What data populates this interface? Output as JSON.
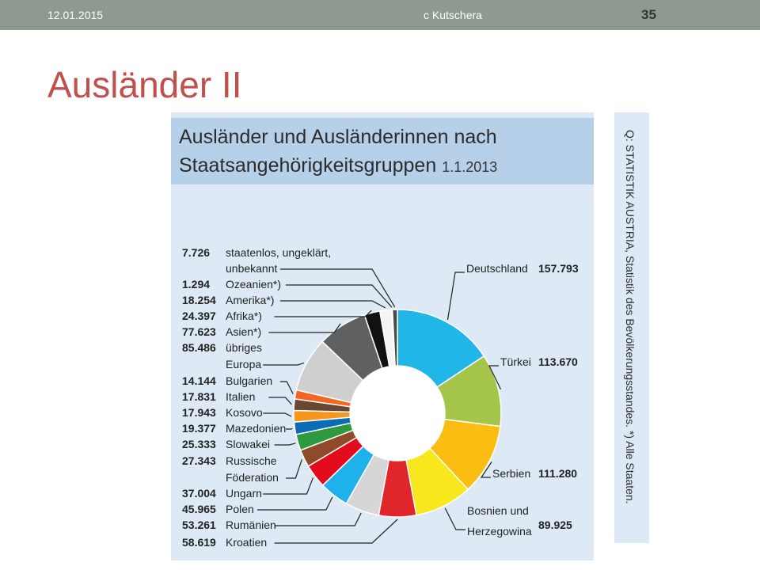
{
  "slide": {
    "date": "12.01.2015",
    "author": "c Kutschera",
    "page": "35",
    "title": "Ausländer II"
  },
  "figure": {
    "title_line1": "Ausländer und Ausländerinnen nach",
    "title_line2": "Staatsangehörigkeitsgruppen",
    "date": "1.1.2013",
    "source": "Q: STATISTIK AUSTRIA, Statistik des Bevölkerungsstandes. *) Alle Staaten."
  },
  "chart_data": {
    "type": "pie",
    "title": "Ausländer und Ausländerinnen nach Staatsangehörigkeitsgruppen",
    "donut": true,
    "series": [
      {
        "values": [
          {
            "label_lines": [
              "Deutschland"
            ],
            "value_text": "157.793",
            "value": 157793,
            "color": "#20b6e8"
          },
          {
            "label_lines": [
              "Türkei"
            ],
            "value_text": "113.670",
            "value": 113670,
            "color": "#a4c54a"
          },
          {
            "label_lines": [
              "Serbien"
            ],
            "value_text": "111.280",
            "value": 111280,
            "color": "#fbbd12"
          },
          {
            "label_lines": [
              "Bosnien und",
              "Herzegowina"
            ],
            "value_text": "89.925",
            "value": 89925,
            "color": "#f8e71c"
          },
          {
            "label_lines": [
              "Kroatien"
            ],
            "value_text": "58.619",
            "value": 58619,
            "color": "#e1262b"
          },
          {
            "label_lines": [
              "Rumänien"
            ],
            "value_text": "53.261",
            "value": 53261,
            "color": "#d6d6d6"
          },
          {
            "label_lines": [
              "Polen"
            ],
            "value_text": "45.965",
            "value": 45965,
            "color": "#1eb1ea"
          },
          {
            "label_lines": [
              "Ungarn"
            ],
            "value_text": "37.004",
            "value": 37004,
            "color": "#e30b1c"
          },
          {
            "label_lines": [
              "Russische",
              "Föderation"
            ],
            "value_text": "27.343",
            "value": 27343,
            "color": "#8f4a2a"
          },
          {
            "label_lines": [
              "Slowakei"
            ],
            "value_text": "25.333",
            "value": 25333,
            "color": "#2e9a3f"
          },
          {
            "label_lines": [
              "Mazedonien"
            ],
            "value_text": "19.377",
            "value": 19377,
            "color": "#0a6cb6"
          },
          {
            "label_lines": [
              "Kosovo"
            ],
            "value_text": "17.943",
            "value": 17943,
            "color": "#f7951d"
          },
          {
            "label_lines": [
              "Italien"
            ],
            "value_text": "17.831",
            "value": 17831,
            "color": "#6a4630"
          },
          {
            "label_lines": [
              "Bulgarien"
            ],
            "value_text": "14.144",
            "value": 14144,
            "color": "#f26522"
          },
          {
            "label_lines": [
              "übriges",
              "Europa"
            ],
            "value_text": "85.486",
            "value": 85486,
            "color": "#cfcfcf"
          },
          {
            "label_lines": [
              "Asien*)"
            ],
            "value_text": "77.623",
            "value": 77623,
            "color": "#5f6061"
          },
          {
            "label_lines": [
              "Afrika*)"
            ],
            "value_text": "24.397",
            "value": 24397,
            "color": "#111111"
          },
          {
            "label_lines": [
              "Amerika*)"
            ],
            "value_text": "18.254",
            "value": 18254,
            "color": "#f4f4f4"
          },
          {
            "label_lines": [
              "Ozeanien*)"
            ],
            "value_text": "1.294",
            "value": 1294,
            "color": "#9a9a9a"
          },
          {
            "label_lines": [
              "staatenlos, ungeklärt,",
              "unbekannt"
            ],
            "value_text": "7.726",
            "value": 7726,
            "color": "#4a4a4a"
          }
        ]
      }
    ]
  }
}
